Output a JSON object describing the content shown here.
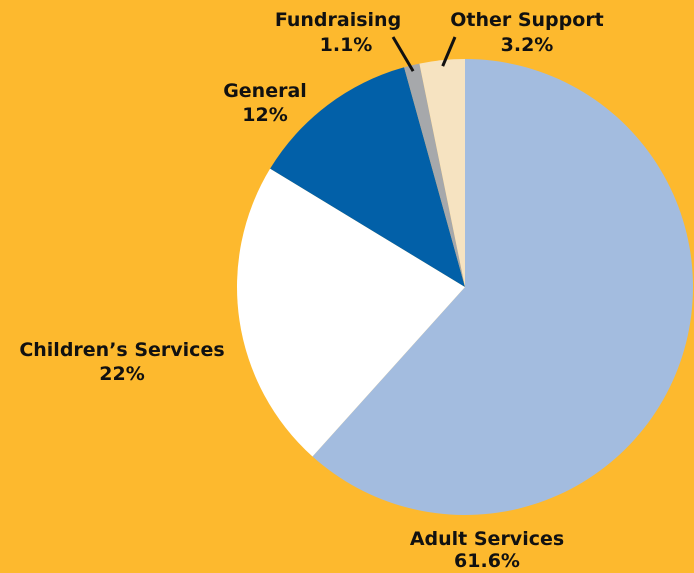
{
  "background_color": "#FDB92E",
  "chart_data": {
    "type": "pie",
    "title": "",
    "start_angle_deg": 0,
    "direction": "clockwise",
    "slices": [
      {
        "label": "Adult Services",
        "value_label": "61.6%",
        "value": 61.6,
        "color": "#A3BCDF"
      },
      {
        "label": "Children’s Services",
        "value_label": "22%",
        "value": 22.0,
        "color": "#FFFFFF"
      },
      {
        "label": "General",
        "value_label": "12%",
        "value": 12.0,
        "color": "#0260A8"
      },
      {
        "label": "Fundraising",
        "value_label": "1.1%",
        "value": 1.1,
        "color": "#A6A8AB"
      },
      {
        "label": "Other Support",
        "value_label": "3.2%",
        "value": 3.2,
        "color": "#F6E3C1"
      }
    ]
  }
}
